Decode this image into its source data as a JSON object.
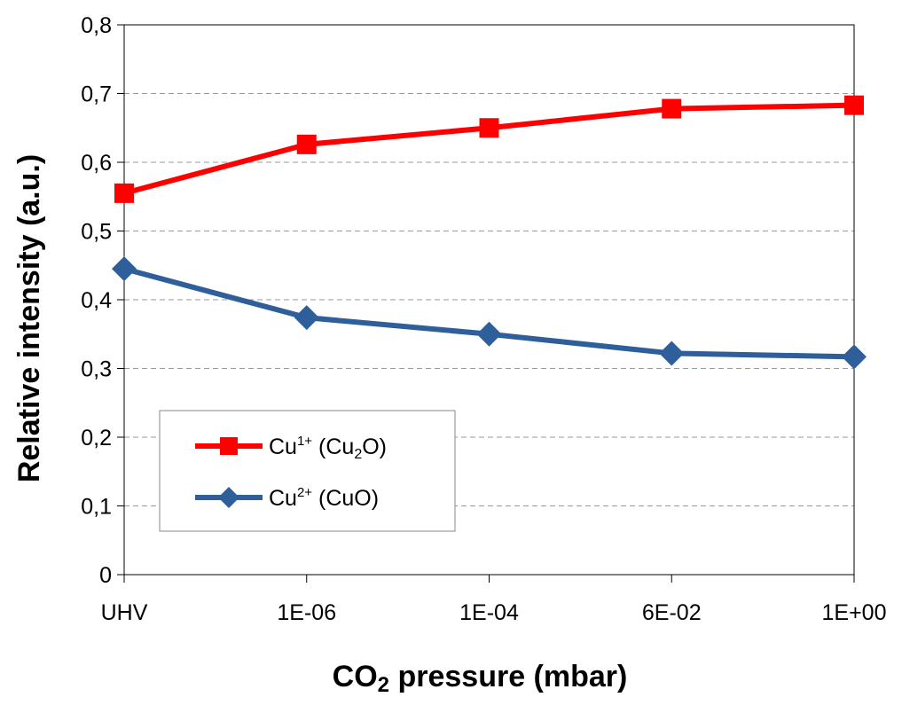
{
  "chart_data": {
    "type": "line",
    "categories": [
      "UHV",
      "1E-06",
      "1E-04",
      "6E-02",
      "1E+00"
    ],
    "series": [
      {
        "name": "Cu1+ (Cu2O)",
        "label_base": "Cu",
        "label_sup": "1+",
        "label_paren_open": " (Cu",
        "label_sub": "2",
        "label_paren_close": "O)",
        "color": "#ff0000",
        "marker": "square",
        "values": [
          0.555,
          0.626,
          0.65,
          0.678,
          0.683
        ]
      },
      {
        "name": "Cu2+ (CuO)",
        "label_base": "Cu",
        "label_sup": "2+",
        "label_rest": " (CuO)",
        "color": "#2f5f9a",
        "marker": "diamond",
        "values": [
          0.445,
          0.374,
          0.35,
          0.322,
          0.317
        ]
      }
    ],
    "yticks": [
      "0",
      "0,1",
      "0,2",
      "0,3",
      "0,4",
      "0,5",
      "0,6",
      "0,7",
      "0,8"
    ],
    "ylim": [
      0,
      0.8
    ],
    "ylabel": "Relative intensity (a.u.)",
    "xlabel": "CO2 pressure (mbar)",
    "xlabel_pre": "CO",
    "xlabel_sub": "2",
    "xlabel_post": " pressure (mbar)",
    "grid": "horizontal dashed",
    "legend_position": "bottom-left"
  }
}
